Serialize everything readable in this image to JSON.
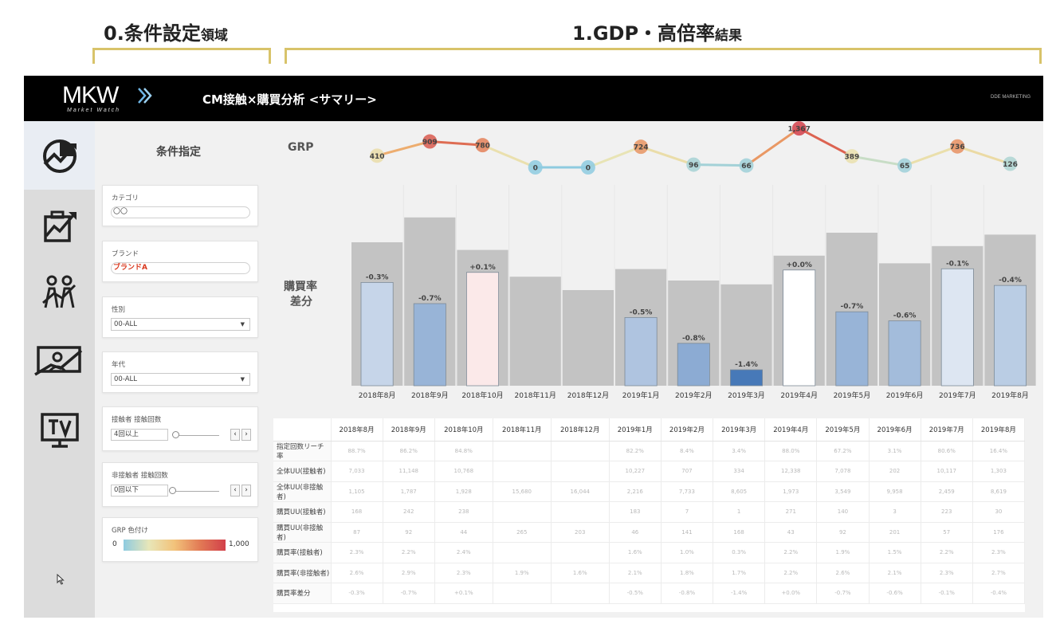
{
  "annotations": {
    "left": {
      "main": "0.条件設定",
      "suffix": "領域"
    },
    "right": {
      "main": "1.GDP・高倍率",
      "suffix": "結果"
    }
  },
  "header": {
    "logo": "MKW",
    "logo_sub": "Market Watch",
    "title": "CM接触×購買分析 <サマリー>",
    "brand_right": "DDE MARKETING"
  },
  "nav": {
    "items": [
      {
        "icon": "summary-chart-icon",
        "active": true
      },
      {
        "icon": "growth-chart-icon",
        "active": false
      },
      {
        "icon": "people-growth-icon",
        "active": false
      },
      {
        "icon": "presentation-person-icon",
        "active": false
      },
      {
        "icon": "tv-icon",
        "active": false
      }
    ]
  },
  "conditions": {
    "title": "条件指定",
    "category": {
      "label": "カテゴリ",
      "value": "〇〇"
    },
    "brand": {
      "label": "ブランド",
      "value": "ブランドA"
    },
    "gender": {
      "label": "性別",
      "value": "00-ALL"
    },
    "age": {
      "label": "年代",
      "value": "00-ALL"
    },
    "contact": {
      "label": "接触者 接触回数",
      "value": "4回以上"
    },
    "noncontact": {
      "label": "非接触者 接触回数",
      "value": "0回以下"
    },
    "grp_color": {
      "label": "GRP 色付け",
      "min": "0",
      "max": "1,000"
    }
  },
  "main": {
    "grp_label": "GRP",
    "diff_label_1": "購買率",
    "diff_label_2": "差分"
  },
  "chart_data": [
    {
      "type": "line",
      "title": "GRP",
      "categories": [
        "2018年8月",
        "2018年9月",
        "2018年10月",
        "2018年11月",
        "2018年12月",
        "2019年1月",
        "2019年2月",
        "2019年3月",
        "2019年4月",
        "2019年5月",
        "2019年6月",
        "2019年7月",
        "2019年8月"
      ],
      "values": [
        410,
        909,
        780,
        0,
        0,
        724,
        96,
        66,
        1367,
        389,
        65,
        736,
        126
      ],
      "labels": [
        "410",
        "909",
        "780",
        "0",
        "0",
        "724",
        "96",
        "66",
        "1,367",
        "389",
        "65",
        "736",
        "126"
      ]
    },
    {
      "type": "bar",
      "title": "購買率差分",
      "categories": [
        "2018年8月",
        "2018年9月",
        "2018年10月",
        "2018年11月",
        "2018年12月",
        "2019年1月",
        "2019年2月",
        "2019年3月",
        "2019年4月",
        "2019年5月",
        "2019年6月",
        "2019年7月",
        "2019年8月"
      ],
      "series": [
        {
          "values": [
            0.75,
            0.88,
            0.71,
            0.57,
            0.5,
            0.61,
            0.55,
            0.53,
            0.68,
            0.8,
            0.64,
            0.73,
            0.79
          ]
        },
        {
          "values": [
            -0.3,
            -0.7,
            0.1,
            null,
            null,
            -0.5,
            -0.8,
            -1.4,
            0.0,
            -0.7,
            -0.6,
            -0.1,
            -0.4
          ],
          "labels": [
            "-0.3%",
            "-0.7%",
            "+0.1%",
            "",
            "",
            "-0.5%",
            "-0.8%",
            "-1.4%",
            "+0.0%",
            "-0.7%",
            "-0.6%",
            "-0.1%",
            "-0.4%"
          ]
        }
      ]
    }
  ],
  "table": {
    "columns": [
      "2018年8月",
      "2018年9月",
      "2018年10月",
      "2018年11月",
      "2018年12月",
      "2019年1月",
      "2019年2月",
      "2019年3月",
      "2019年4月",
      "2019年5月",
      "2019年6月",
      "2019年7月",
      "2019年8月"
    ],
    "rows": [
      {
        "label": "指定回数リーチ率",
        "cells": [
          "88.7%",
          "86.2%",
          "84.8%",
          "",
          "",
          "82.2%",
          "8.4%",
          "3.4%",
          "88.0%",
          "67.2%",
          "3.1%",
          "80.6%",
          "16.4%"
        ]
      },
      {
        "label": "全体UU(接触者)",
        "cells": [
          "7,033",
          "11,148",
          "10,768",
          "",
          "",
          "10,227",
          "707",
          "334",
          "12,338",
          "7,078",
          "202",
          "10,117",
          "1,303"
        ]
      },
      {
        "label": "全体UU(非接触者)",
        "cells": [
          "1,105",
          "1,787",
          "1,928",
          "15,680",
          "16,044",
          "2,216",
          "7,733",
          "8,605",
          "1,973",
          "3,549",
          "9,958",
          "2,459",
          "8,619"
        ]
      },
      {
        "label": "購買UU(接触者)",
        "cells": [
          "168",
          "242",
          "238",
          "",
          "",
          "183",
          "7",
          "1",
          "271",
          "140",
          "3",
          "223",
          "30"
        ]
      },
      {
        "label": "購買UU(非接触者)",
        "cells": [
          "87",
          "92",
          "44",
          "265",
          "203",
          "46",
          "141",
          "168",
          "43",
          "92",
          "201",
          "57",
          "176"
        ]
      },
      {
        "label": "購買率(接触者)",
        "cells": [
          "2.3%",
          "2.2%",
          "2.4%",
          "",
          "",
          "1.6%",
          "1.0%",
          "0.3%",
          "2.2%",
          "1.9%",
          "1.5%",
          "2.2%",
          "2.3%"
        ]
      },
      {
        "label": "購買率(非接触者)",
        "cells": [
          "2.6%",
          "2.9%",
          "2.3%",
          "1.9%",
          "1.6%",
          "2.1%",
          "1.8%",
          "1.7%",
          "2.2%",
          "2.6%",
          "2.1%",
          "2.3%",
          "2.7%"
        ]
      },
      {
        "label": "購買率差分",
        "cells": [
          "-0.3%",
          "-0.7%",
          "+0.1%",
          "",
          "",
          "-0.5%",
          "-0.8%",
          "-1.4%",
          "+0.0%",
          "-0.7%",
          "-0.6%",
          "-0.1%",
          "-0.4%"
        ]
      }
    ]
  }
}
